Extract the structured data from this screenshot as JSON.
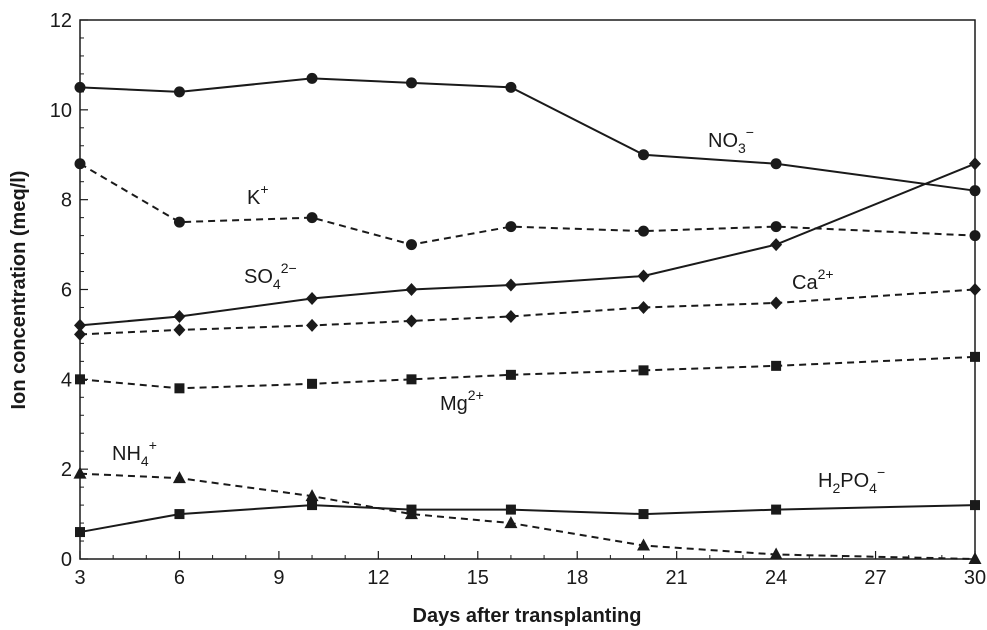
{
  "chart_data": {
    "type": "line",
    "title": "",
    "xlabel": "Days after transplanting",
    "ylabel": "Ion concentration (meq/l)",
    "xlim": [
      3,
      30
    ],
    "ylim": [
      0,
      12
    ],
    "x_ticks": [
      3,
      6,
      9,
      12,
      15,
      18,
      21,
      24,
      27,
      30
    ],
    "y_ticks": [
      0,
      2,
      4,
      6,
      8,
      10,
      12
    ],
    "grid": false,
    "legend": "none (series labeled inline)",
    "series": [
      {
        "name": "NO3−",
        "label": {
          "base": "NO",
          "sub": "3",
          "sup": "−"
        },
        "line_style": "solid",
        "marker": "circle",
        "x": [
          3,
          6,
          10,
          13,
          16,
          20,
          24,
          30
        ],
        "y": [
          10.5,
          10.4,
          10.7,
          10.6,
          10.5,
          9.0,
          8.8,
          8.2
        ]
      },
      {
        "name": "K+",
        "label": {
          "base": "K",
          "sub": "",
          "sup": "+"
        },
        "line_style": "dashed",
        "marker": "circle",
        "x": [
          3,
          6,
          10,
          13,
          16,
          20,
          24,
          30
        ],
        "y": [
          8.8,
          7.5,
          7.6,
          7.0,
          7.4,
          7.3,
          7.4,
          7.2
        ]
      },
      {
        "name": "SO42−",
        "label": {
          "base": "SO",
          "sub": "4",
          "sup": "2−"
        },
        "line_style": "solid",
        "marker": "diamond",
        "x": [
          3,
          6,
          10,
          13,
          16,
          20,
          24,
          30
        ],
        "y": [
          5.2,
          5.4,
          5.8,
          6.0,
          6.1,
          6.3,
          7.0,
          8.8
        ]
      },
      {
        "name": "Ca2+",
        "label": {
          "base": "Ca",
          "sub": "",
          "sup": "2+"
        },
        "line_style": "dashed",
        "marker": "diamond",
        "x": [
          3,
          6,
          10,
          13,
          16,
          20,
          24,
          30
        ],
        "y": [
          5.0,
          5.1,
          5.2,
          5.3,
          5.4,
          5.6,
          5.7,
          6.0
        ]
      },
      {
        "name": "Mg2+",
        "label": {
          "base": "Mg",
          "sub": "",
          "sup": "2+"
        },
        "line_style": "dashed",
        "marker": "square",
        "x": [
          3,
          6,
          10,
          13,
          16,
          20,
          24,
          30
        ],
        "y": [
          4.0,
          3.8,
          3.9,
          4.0,
          4.1,
          4.2,
          4.3,
          4.5
        ]
      },
      {
        "name": "NH4+",
        "label": {
          "base": "NH",
          "sub": "4",
          "sup": "+"
        },
        "line_style": "dashed",
        "marker": "triangle",
        "x": [
          3,
          6,
          10,
          13,
          16,
          20,
          24,
          30
        ],
        "y": [
          1.9,
          1.8,
          1.4,
          1.0,
          0.8,
          0.3,
          0.1,
          0.0
        ]
      },
      {
        "name": "H2PO4−",
        "label": {
          "base": "H",
          "sub": "2",
          "base2": "PO",
          "sub2": "4",
          "sup": "−"
        },
        "line_style": "solid",
        "marker": "square",
        "x": [
          3,
          6,
          10,
          13,
          16,
          20,
          24,
          30
        ],
        "y": [
          0.6,
          1.0,
          1.2,
          1.1,
          1.1,
          1.0,
          1.1,
          1.2
        ]
      }
    ]
  }
}
